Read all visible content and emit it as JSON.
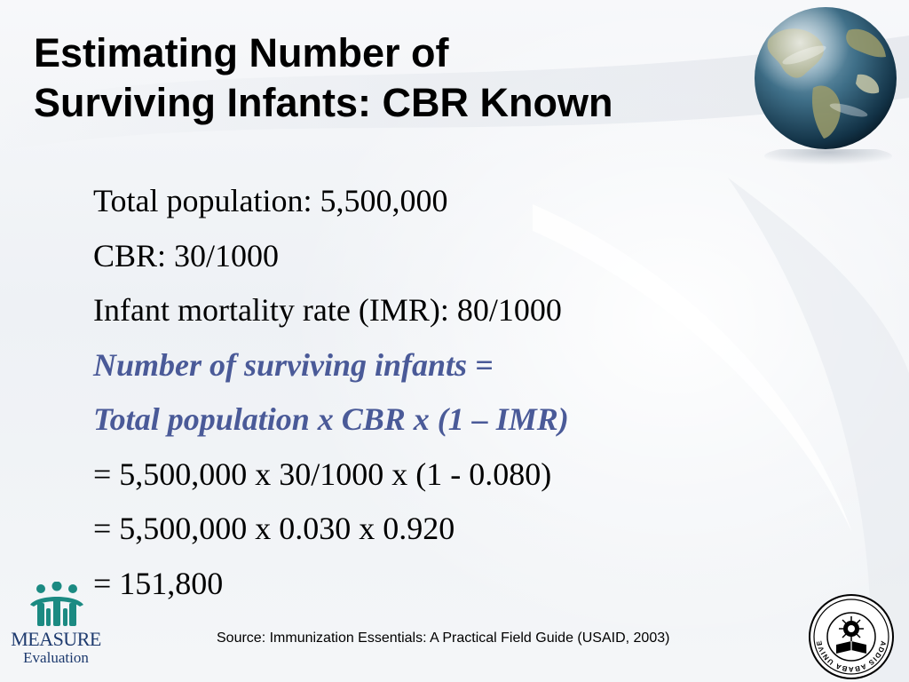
{
  "slide": {
    "title_line1": "Estimating Number of",
    "title_line2": "Surviving Infants: CBR Known",
    "lines": [
      {
        "text": "Total population: 5,500,000",
        "emphasis": false
      },
      {
        "text": "CBR: 30/1000",
        "emphasis": false
      },
      {
        "text": "Infant mortality rate (IMR): 80/1000",
        "emphasis": false
      },
      {
        "text": "Number of surviving infants =",
        "emphasis": true
      },
      {
        "text": "Total population x CBR x (1 – IMR)",
        "emphasis": true
      },
      {
        "text": "= 5,500,000 x 30/1000 x (1 - 0.080)",
        "emphasis": false
      },
      {
        "text": "= 5,500,000 x 0.030 x 0.920",
        "emphasis": false
      },
      {
        "text": "= 151,800",
        "emphasis": false
      }
    ],
    "source": "Source: Immunization Essentials: A Practical Field Guide (USAID, 2003)",
    "emphasis_color": "#4a5a98"
  },
  "branding": {
    "logo_word": "MEASURE",
    "logo_subword": "Evaluation",
    "logo_color": "#1d3a6e",
    "logo_figure_color": "#1b8a82",
    "globe_icon": "globe-icon",
    "seal_icon": "university-seal-icon",
    "seal_text": "ADDIS ABABA UNIVERSITY"
  }
}
